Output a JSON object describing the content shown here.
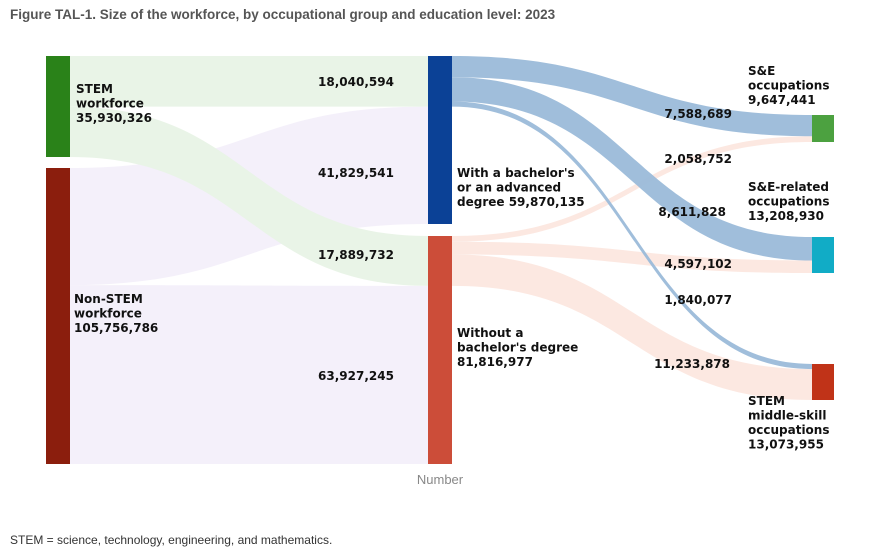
{
  "title": "Figure TAL-1. Size of the workforce, by occupational group and education level: 2023",
  "footnote": "STEM = science, technology, engineering, and mathematics.",
  "chart_data": {
    "type": "sankey",
    "xlabel": "Number",
    "nodes": [
      {
        "id": "stem",
        "lines": [
          "STEM",
          "workforce",
          "35,930,326"
        ],
        "value": 35930326,
        "color": "#2a8219"
      },
      {
        "id": "nonstem",
        "lines": [
          "Non-STEM",
          "workforce",
          "105,756,786"
        ],
        "value": 105756786,
        "color": "#8b1e0d"
      },
      {
        "id": "ba",
        "lines": [
          "With a bachelor's",
          "or an advanced",
          "degree 59,870,135"
        ],
        "value": 59870135,
        "color": "#0b4196"
      },
      {
        "id": "noba",
        "lines": [
          "Without a",
          "bachelor's degree",
          "81,816,977"
        ],
        "value": 81816977,
        "color": "#cc4d39"
      },
      {
        "id": "se",
        "lines": [
          "S&E",
          "occupations",
          "9,647,441"
        ],
        "value": 9647441,
        "color": "#4ca140"
      },
      {
        "id": "serel",
        "lines": [
          "S&E-related",
          "occupations",
          "13,208,930"
        ],
        "value": 13208930,
        "color": "#11acc6"
      },
      {
        "id": "mid",
        "lines": [
          "STEM",
          "middle-skill",
          "occupations",
          "13,073,955"
        ],
        "value": 13073955,
        "color": "#c03318"
      }
    ],
    "links": [
      {
        "source": "stem",
        "target": "ba",
        "value": 18040594,
        "label": "18,040,594"
      },
      {
        "source": "stem",
        "target": "noba",
        "value": 17889732,
        "label": "17,889,732"
      },
      {
        "source": "nonstem",
        "target": "ba",
        "value": 41829541,
        "label": "41,829,541"
      },
      {
        "source": "nonstem",
        "target": "noba",
        "value": 63927245,
        "label": "63,927,245"
      },
      {
        "source": "ba",
        "target": "se",
        "value": 7588689,
        "label": "7,588,689"
      },
      {
        "source": "ba",
        "target": "serel",
        "value": 8611828,
        "label": "8,611,828"
      },
      {
        "source": "ba",
        "target": "mid",
        "value": 1840077,
        "label": "1,840,077"
      },
      {
        "source": "noba",
        "target": "se",
        "value": 2058752,
        "label": "2,058,752"
      },
      {
        "source": "noba",
        "target": "serel",
        "value": 4597102,
        "label": "4,597,102"
      },
      {
        "source": "noba",
        "target": "mid",
        "value": 11233878,
        "label": "11,233,878"
      }
    ]
  }
}
